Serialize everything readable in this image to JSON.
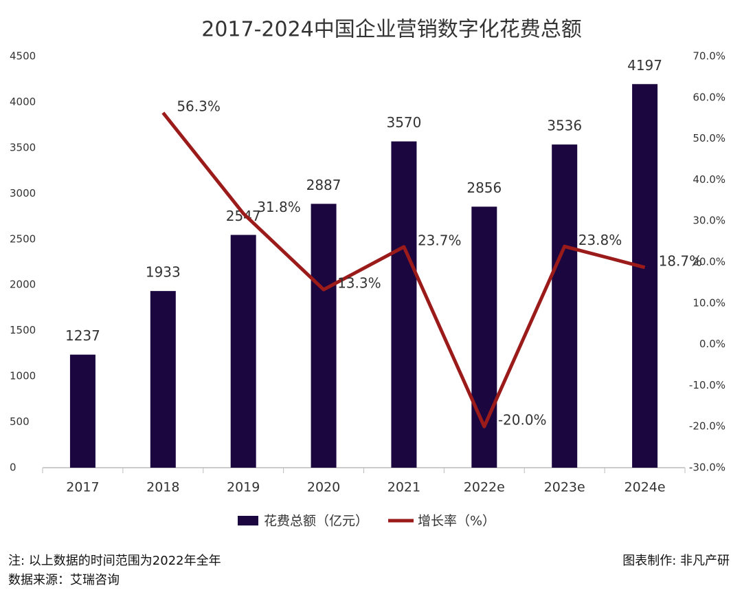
{
  "chart_data": {
    "type": "bar-line",
    "title": "2017-2024中国企业营销数字化花费总额",
    "categories": [
      "2017",
      "2018",
      "2019",
      "2020",
      "2021",
      "2022e",
      "2023e",
      "2024e"
    ],
    "series": [
      {
        "name": "花费总额（亿元）",
        "type": "bar",
        "color": "#1c0640",
        "values": [
          1237,
          1933,
          2547,
          2887,
          3570,
          2856,
          3536,
          4197
        ]
      },
      {
        "name": "增长率（%）",
        "type": "line",
        "axis": "y2",
        "color": "#9b1b1b",
        "values": [
          null,
          56.3,
          31.8,
          13.3,
          23.7,
          -20.0,
          23.8,
          18.7
        ],
        "value_labels": [
          null,
          "56.3%",
          "31.8%",
          "13.3%",
          "23.7%",
          "-20.0%",
          "23.8%",
          "18.7%"
        ]
      }
    ],
    "ylim": [
      0,
      4500
    ],
    "yticks": [
      0,
      500,
      1000,
      1500,
      2000,
      2500,
      3000,
      3500,
      4000,
      4500
    ],
    "y2lim": [
      -30,
      70
    ],
    "y2ticks": [
      {
        "value": -30,
        "label": "-30.0%"
      },
      {
        "value": -20,
        "label": "-20.0%"
      },
      {
        "value": -10,
        "label": "-10.0%"
      },
      {
        "value": 0,
        "label": "0.0%"
      },
      {
        "value": 10,
        "label": "10.0%"
      },
      {
        "value": 20,
        "label": "20.0%"
      },
      {
        "value": 30,
        "label": "30.0%"
      },
      {
        "value": 40,
        "label": "40.0%"
      },
      {
        "value": 50,
        "label": "50.0%"
      },
      {
        "value": 60,
        "label": "60.0%"
      },
      {
        "value": 70,
        "label": "70.0%"
      }
    ],
    "note": "注: 以上数据的时间范围为2022年全年",
    "source": "数据来源：艾瑞咨询",
    "credit": "图表制作: 非凡产研"
  }
}
